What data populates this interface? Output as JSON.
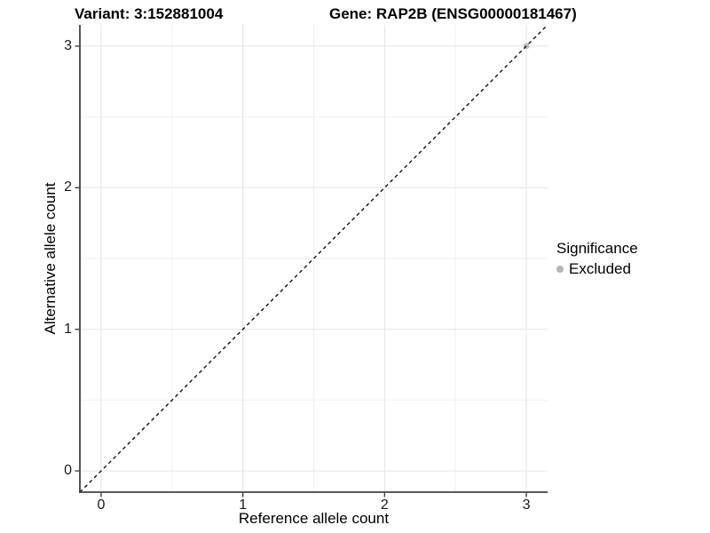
{
  "figure": {
    "background": "#ffffff"
  },
  "chart_data": {
    "type": "scatter",
    "titles": {
      "variant": "Variant: 3:152881004",
      "gene": "Gene: RAP2B (ENSG00000181467)"
    },
    "xlabel": "Reference allele count",
    "ylabel": "Alternative allele count",
    "xlim": [
      -0.15,
      3.15
    ],
    "ylim": [
      -0.15,
      3.15
    ],
    "xticks": [
      0,
      1,
      2,
      3
    ],
    "yticks": [
      0,
      1,
      2,
      3
    ],
    "xminor": [
      0.5,
      1.5,
      2.5
    ],
    "yminor": [
      0.5,
      1.5,
      2.5
    ],
    "grid": "major_and_minor",
    "identity_line": {
      "type": "abline",
      "slope": 1,
      "intercept": 0,
      "style": "dashed",
      "color": "#000000"
    },
    "points": [
      {
        "x": 3,
        "y": 3,
        "significance": "Excluded",
        "color": "#bebebe"
      }
    ],
    "legend": {
      "title": "Significance",
      "position": "right",
      "entries": [
        {
          "label": "Excluded",
          "color": "#b5b5b5"
        }
      ]
    },
    "colors": {
      "grid_major": "#e4e4e4",
      "grid_minor": "#f1f1f1",
      "axis_line": "#404040",
      "tick_mark": "#404040",
      "tick_label": "#1a1a1a"
    }
  }
}
